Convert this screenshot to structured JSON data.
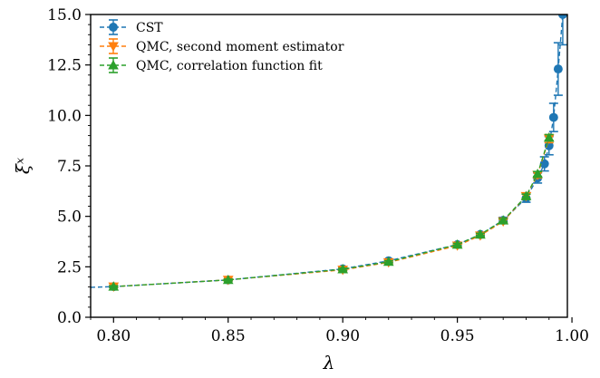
{
  "chart_data": {
    "type": "line",
    "xlabel": "λ",
    "ylabel": "ξˣ",
    "xlim": [
      0.79,
      0.998
    ],
    "ylim": [
      0.0,
      15.0
    ],
    "x_ticks": [
      0.8,
      0.85,
      0.9,
      0.95,
      1.0
    ],
    "x_tick_labels": [
      "0.80",
      "0.85",
      "0.90",
      "0.95",
      "1.00"
    ],
    "y_ticks": [
      0.0,
      2.5,
      5.0,
      7.5,
      10.0,
      12.5,
      15.0
    ],
    "y_tick_labels": [
      "0.0",
      "2.5",
      "5.0",
      "7.5",
      "10.0",
      "12.5",
      "15.0"
    ],
    "grid": false,
    "legend_position": "top-left",
    "series": [
      {
        "name": "CST",
        "color": "#1f77b4",
        "marker": "circle",
        "linestyle": "dashed",
        "x": [
          0.79,
          0.8,
          0.85,
          0.9,
          0.92,
          0.95,
          0.96,
          0.97,
          0.98,
          0.985,
          0.988,
          0.99,
          0.992,
          0.994,
          0.996
        ],
        "y": [
          1.48,
          1.52,
          1.85,
          2.4,
          2.8,
          3.6,
          4.1,
          4.8,
          5.9,
          6.9,
          7.6,
          8.5,
          9.9,
          12.3,
          15.0
        ],
        "yerr": [
          0.0,
          0.05,
          0.05,
          0.06,
          0.07,
          0.1,
          0.1,
          0.15,
          0.2,
          0.25,
          0.35,
          0.45,
          0.7,
          1.3,
          1.5
        ]
      },
      {
        "name": "QMC, second moment estimator",
        "color": "#ff7f0e",
        "marker": "triangle-down",
        "linestyle": "dashed",
        "x": [
          0.8,
          0.85,
          0.9,
          0.92,
          0.95,
          0.96,
          0.97,
          0.98,
          0.985,
          0.99
        ],
        "y": [
          1.52,
          1.85,
          2.35,
          2.72,
          3.55,
          4.05,
          4.75,
          6.0,
          7.05,
          8.85
        ],
        "yerr": [
          0.05,
          0.05,
          0.06,
          0.06,
          0.08,
          0.08,
          0.1,
          0.12,
          0.15,
          0.2
        ]
      },
      {
        "name": "QMC, correlation function fit",
        "color": "#2ca02c",
        "marker": "triangle-up",
        "linestyle": "dashed",
        "x": [
          0.8,
          0.85,
          0.9,
          0.92,
          0.95,
          0.96,
          0.97,
          0.98,
          0.985,
          0.99
        ],
        "y": [
          1.52,
          1.85,
          2.38,
          2.75,
          3.6,
          4.1,
          4.8,
          6.0,
          7.1,
          8.9
        ],
        "yerr": [
          0.04,
          0.04,
          0.05,
          0.05,
          0.06,
          0.06,
          0.08,
          0.1,
          0.12,
          0.15
        ]
      }
    ]
  }
}
